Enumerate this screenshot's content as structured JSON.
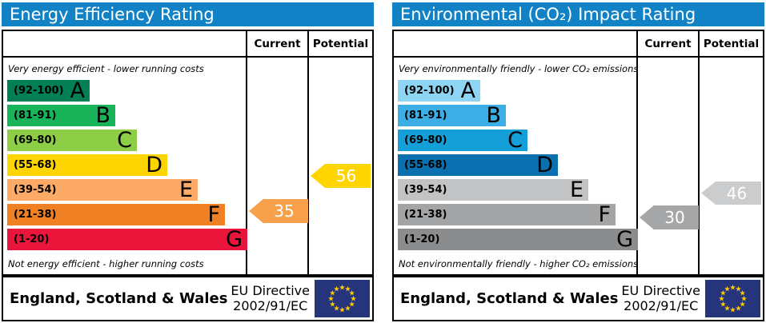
{
  "chart_data": [
    {
      "type": "bar",
      "title": "Energy Efficiency Rating",
      "columns": {
        "current": "Current",
        "potential": "Potential"
      },
      "top_caption": "Very energy efficient - lower running costs",
      "bottom_caption": "Not energy efficient - higher running costs",
      "bands": [
        {
          "range": "(92-100)",
          "letter": "A",
          "min": 92,
          "max": 100,
          "color": "#008054"
        },
        {
          "range": "(81-91)",
          "letter": "B",
          "min": 81,
          "max": 91,
          "color": "#19b459"
        },
        {
          "range": "(69-80)",
          "letter": "C",
          "min": 69,
          "max": 80,
          "color": "#8dce46"
        },
        {
          "range": "(55-68)",
          "letter": "D",
          "min": 55,
          "max": 68,
          "color": "#ffd500"
        },
        {
          "range": "(39-54)",
          "letter": "E",
          "min": 39,
          "max": 54,
          "color": "#fcaa65"
        },
        {
          "range": "(21-38)",
          "letter": "F",
          "min": 21,
          "max": 38,
          "color": "#ef8023"
        },
        {
          "range": "(1-20)",
          "letter": "G",
          "min": 1,
          "max": 20,
          "color": "#e9153b"
        }
      ],
      "current": {
        "value": 35,
        "band": "F",
        "color": "#f9a04b"
      },
      "potential": {
        "value": 56,
        "band": "D",
        "color": "#ffd500"
      },
      "footer": {
        "region": "England, Scotland & Wales",
        "directive_line1": "EU Directive",
        "directive_line2": "2002/91/EC",
        "flag_blue": "#26357b",
        "flag_star_color": "#ffcc00"
      }
    },
    {
      "type": "bar",
      "title": "Environmental (CO₂) Impact Rating",
      "columns": {
        "current": "Current",
        "potential": "Potential"
      },
      "top_caption": "Very environmentally friendly - lower CO₂ emissions",
      "bottom_caption": "Not environmentally friendly - higher CO₂ emissions",
      "bands": [
        {
          "range": "(92-100)",
          "letter": "A",
          "min": 92,
          "max": 100,
          "color": "#8ed4f3"
        },
        {
          "range": "(81-91)",
          "letter": "B",
          "min": 81,
          "max": 91,
          "color": "#3bafe5"
        },
        {
          "range": "(69-80)",
          "letter": "C",
          "min": 69,
          "max": 80,
          "color": "#159fd9"
        },
        {
          "range": "(55-68)",
          "letter": "D",
          "min": 55,
          "max": 68,
          "color": "#0b70b0"
        },
        {
          "range": "(39-54)",
          "letter": "E",
          "min": 39,
          "max": 54,
          "color": "#c2c3c5"
        },
        {
          "range": "(21-38)",
          "letter": "F",
          "min": 21,
          "max": 38,
          "color": "#a3a4a6"
        },
        {
          "range": "(1-20)",
          "letter": "G",
          "min": 1,
          "max": 20,
          "color": "#8a8c8e"
        }
      ],
      "current": {
        "value": 30,
        "band": "F",
        "color": "#a5a6a8"
      },
      "potential": {
        "value": 46,
        "band": "E",
        "color": "#cbcccd"
      },
      "footer": {
        "region": "England, Scotland & Wales",
        "directive_line1": "EU Directive",
        "directive_line2": "2002/91/EC",
        "flag_blue": "#26357b",
        "flag_star_color": "#ffcc00"
      }
    }
  ],
  "header_bar_color": "#1282c6"
}
